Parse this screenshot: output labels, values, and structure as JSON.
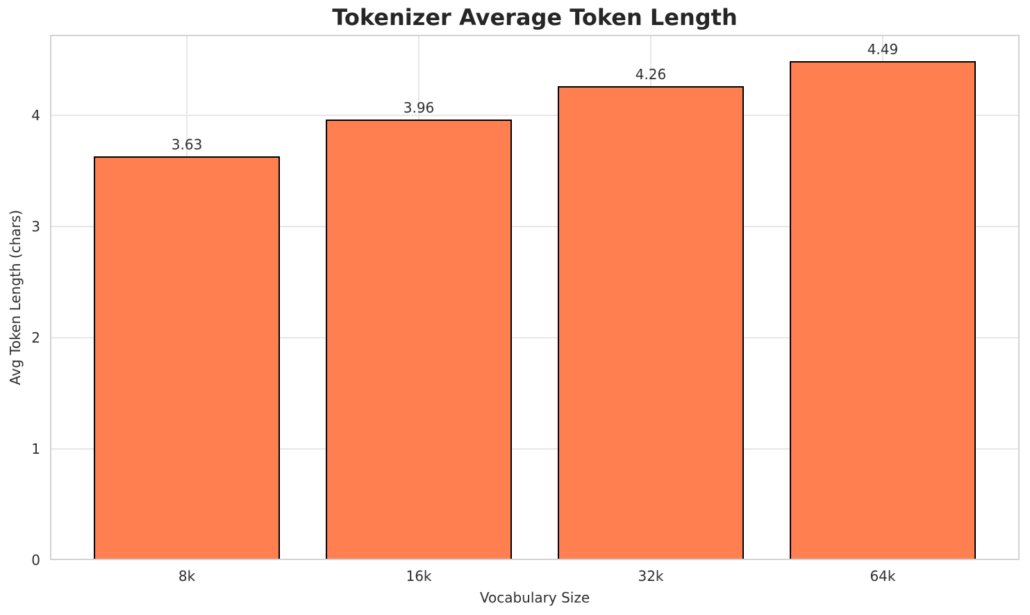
{
  "chart_data": {
    "type": "bar",
    "title": "Tokenizer Average Token Length",
    "xlabel": "Vocabulary Size",
    "ylabel": "Avg Token Length (chars)",
    "categories": [
      "8k",
      "16k",
      "32k",
      "64k"
    ],
    "values": [
      3.63,
      3.96,
      4.26,
      4.49
    ],
    "value_labels": [
      "3.63",
      "3.96",
      "4.26",
      "4.49"
    ],
    "yticks": [
      0,
      1,
      2,
      3,
      4
    ],
    "ytick_labels": [
      "0",
      "1",
      "2",
      "3",
      "4"
    ],
    "ylim": [
      0,
      4.725
    ],
    "grid": true,
    "legend_position": "none",
    "colors": {
      "bar_fill": "#FF7F50",
      "bar_edge": "#000000",
      "grid_line": "#E7E7E7",
      "spine": "#D2D2D2",
      "text": "#2E2E2E",
      "title_text": "#262626",
      "background": "#FFFFFF"
    }
  }
}
